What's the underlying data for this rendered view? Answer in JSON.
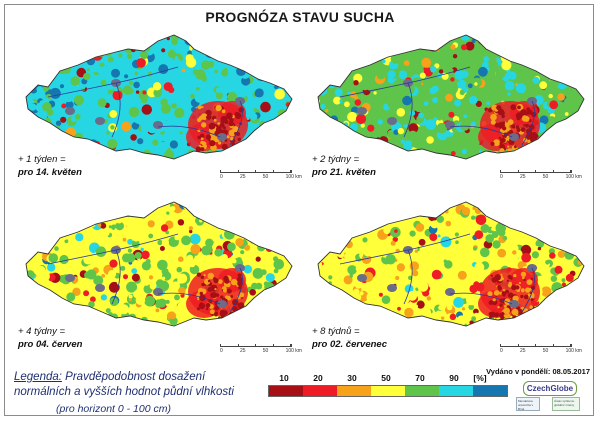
{
  "title": "PROGNÓZA STAVU SUCHA",
  "panels": [
    {
      "caption_top": "+ 1 týden =",
      "caption_bottom": "pro 14. květen"
    },
    {
      "caption_top": "+ 2 týdny =",
      "caption_bottom": "pro 21. květen"
    },
    {
      "caption_top": "+ 4 týdny =",
      "caption_bottom": "pro 04. červen"
    },
    {
      "caption_top": "+ 8 týdnů =",
      "caption_bottom": "pro 02. červenec"
    }
  ],
  "scalebar": {
    "ticks": [
      "0",
      "25",
      "50",
      "100 km"
    ]
  },
  "legend": {
    "label": "Legenda:",
    "line1": "Pravděpodobnost dosažení",
    "line2": "normálních a vyšších hodnot půdní vlhkosti",
    "sub": "(pro horizont 0 - 100 cm)"
  },
  "colorbar": {
    "labels": [
      "10",
      "20",
      "30",
      "50",
      "70",
      "90",
      "[%]"
    ],
    "colors": [
      "#a50f15",
      "#ee1c25",
      "#f7a21b",
      "#ffff3a",
      "#5fc44a",
      "#26d6e2",
      "#1676b0"
    ]
  },
  "issued": "Vydáno v pondělí: 08.05.2017",
  "logo": {
    "main": "CzechGlobe",
    "sub1": "Mendelova univerzita v Brně",
    "sub2": "Ústav výzkumu globální změny"
  },
  "map_colors": {
    "very_dry": "#a50f15",
    "dry": "#ee1c25",
    "orange": "#f7a21b",
    "yellow": "#ffff3a",
    "green": "#5fc44a",
    "cyan": "#26d6e2",
    "blue": "#1676b0",
    "city": "#6b6b8a",
    "river": "#2a3a9a"
  }
}
